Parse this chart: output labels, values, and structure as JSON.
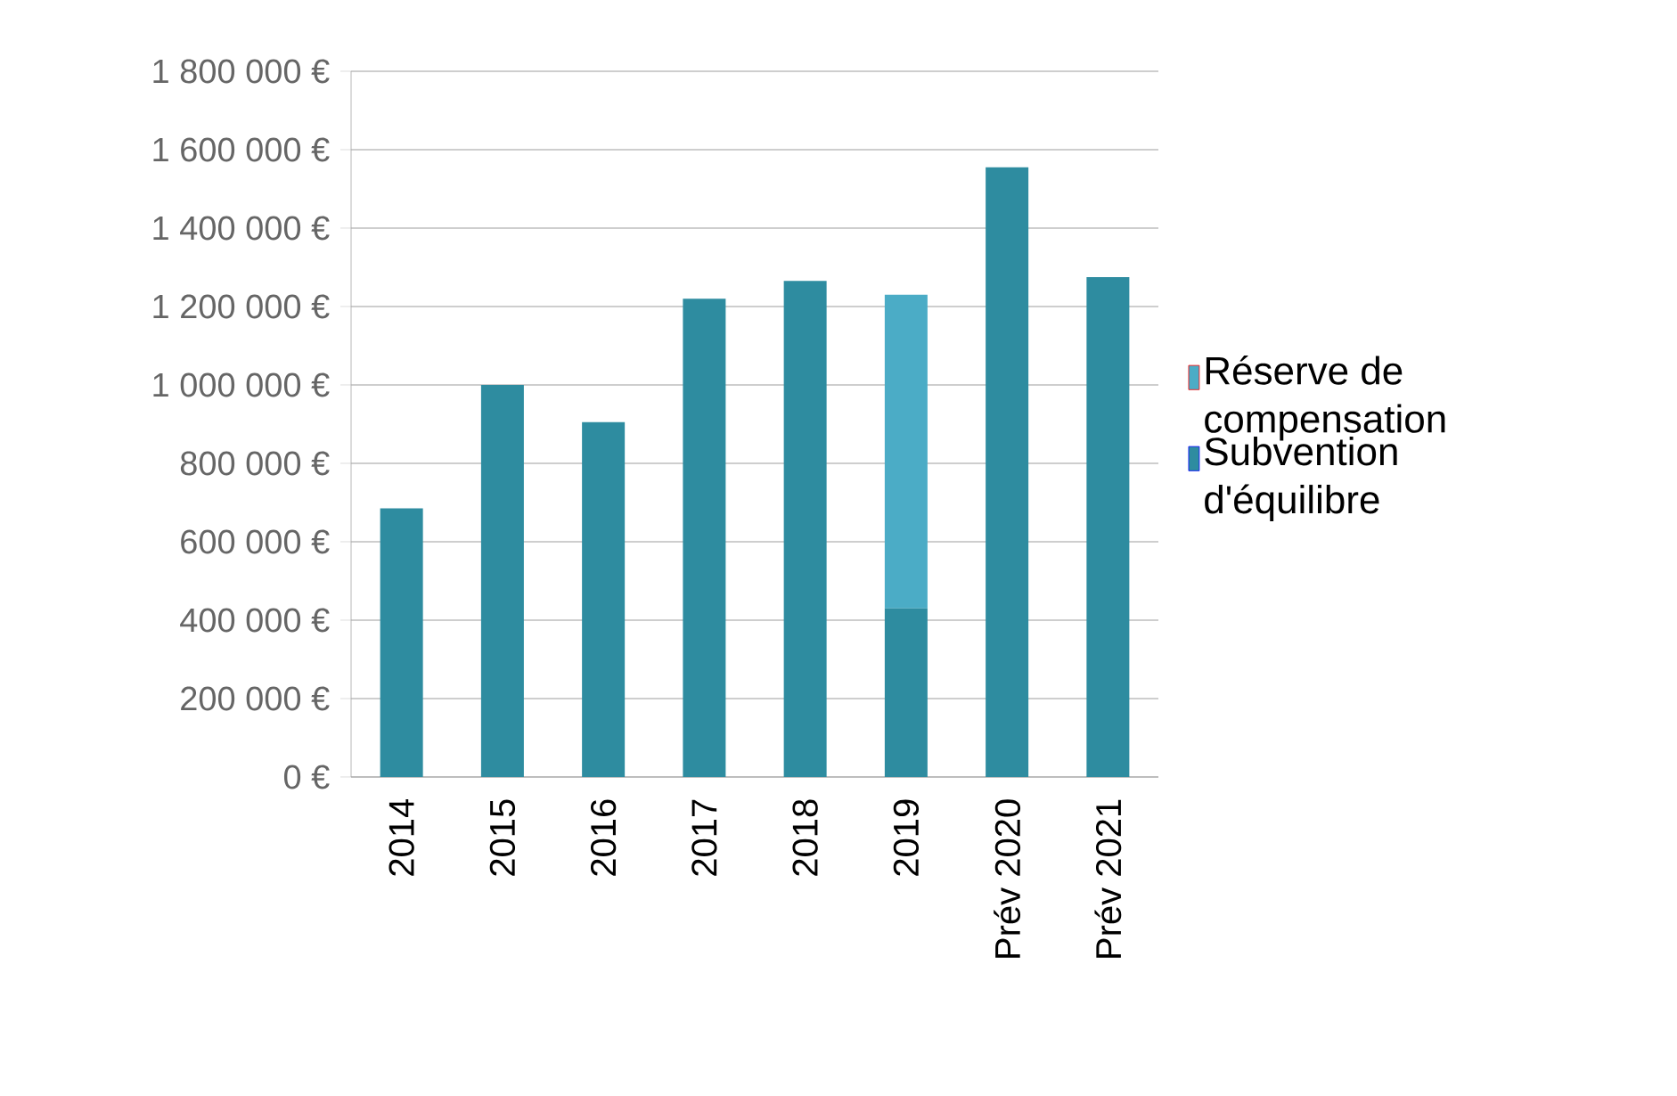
{
  "chart_data": {
    "type": "bar",
    "stacked": true,
    "categories": [
      "2014",
      "2015",
      "2016",
      "2017",
      "2018",
      "2019",
      "Prév 2020",
      "Prév 2021"
    ],
    "series": [
      {
        "name": "Subvention d'équilibre",
        "color": "#2e8ca0",
        "values": [
          685000,
          1000000,
          905000,
          1220000,
          1265000,
          430000,
          1555000,
          1275000
        ]
      },
      {
        "name": "Réserve de compensation",
        "color": "#4bacc6",
        "values": [
          0,
          0,
          0,
          0,
          0,
          800000,
          0,
          0
        ]
      }
    ],
    "ylim": [
      0,
      1800000
    ],
    "yticks": [
      {
        "value": 0,
        "label": "0 €"
      },
      {
        "value": 200000,
        "label": "200 000 €"
      },
      {
        "value": 400000,
        "label": "400 000 €"
      },
      {
        "value": 600000,
        "label": "600 000 €"
      },
      {
        "value": 800000,
        "label": "800 000 €"
      },
      {
        "value": 1000000,
        "label": "1 000 000 €"
      },
      {
        "value": 1200000,
        "label": "1 200 000 €"
      },
      {
        "value": 1400000,
        "label": "1 400 000 €"
      },
      {
        "value": 1600000,
        "label": "1 600 000 €"
      },
      {
        "value": 1800000,
        "label": "1 800 000 €"
      }
    ],
    "grid": "y",
    "legend": "right"
  }
}
